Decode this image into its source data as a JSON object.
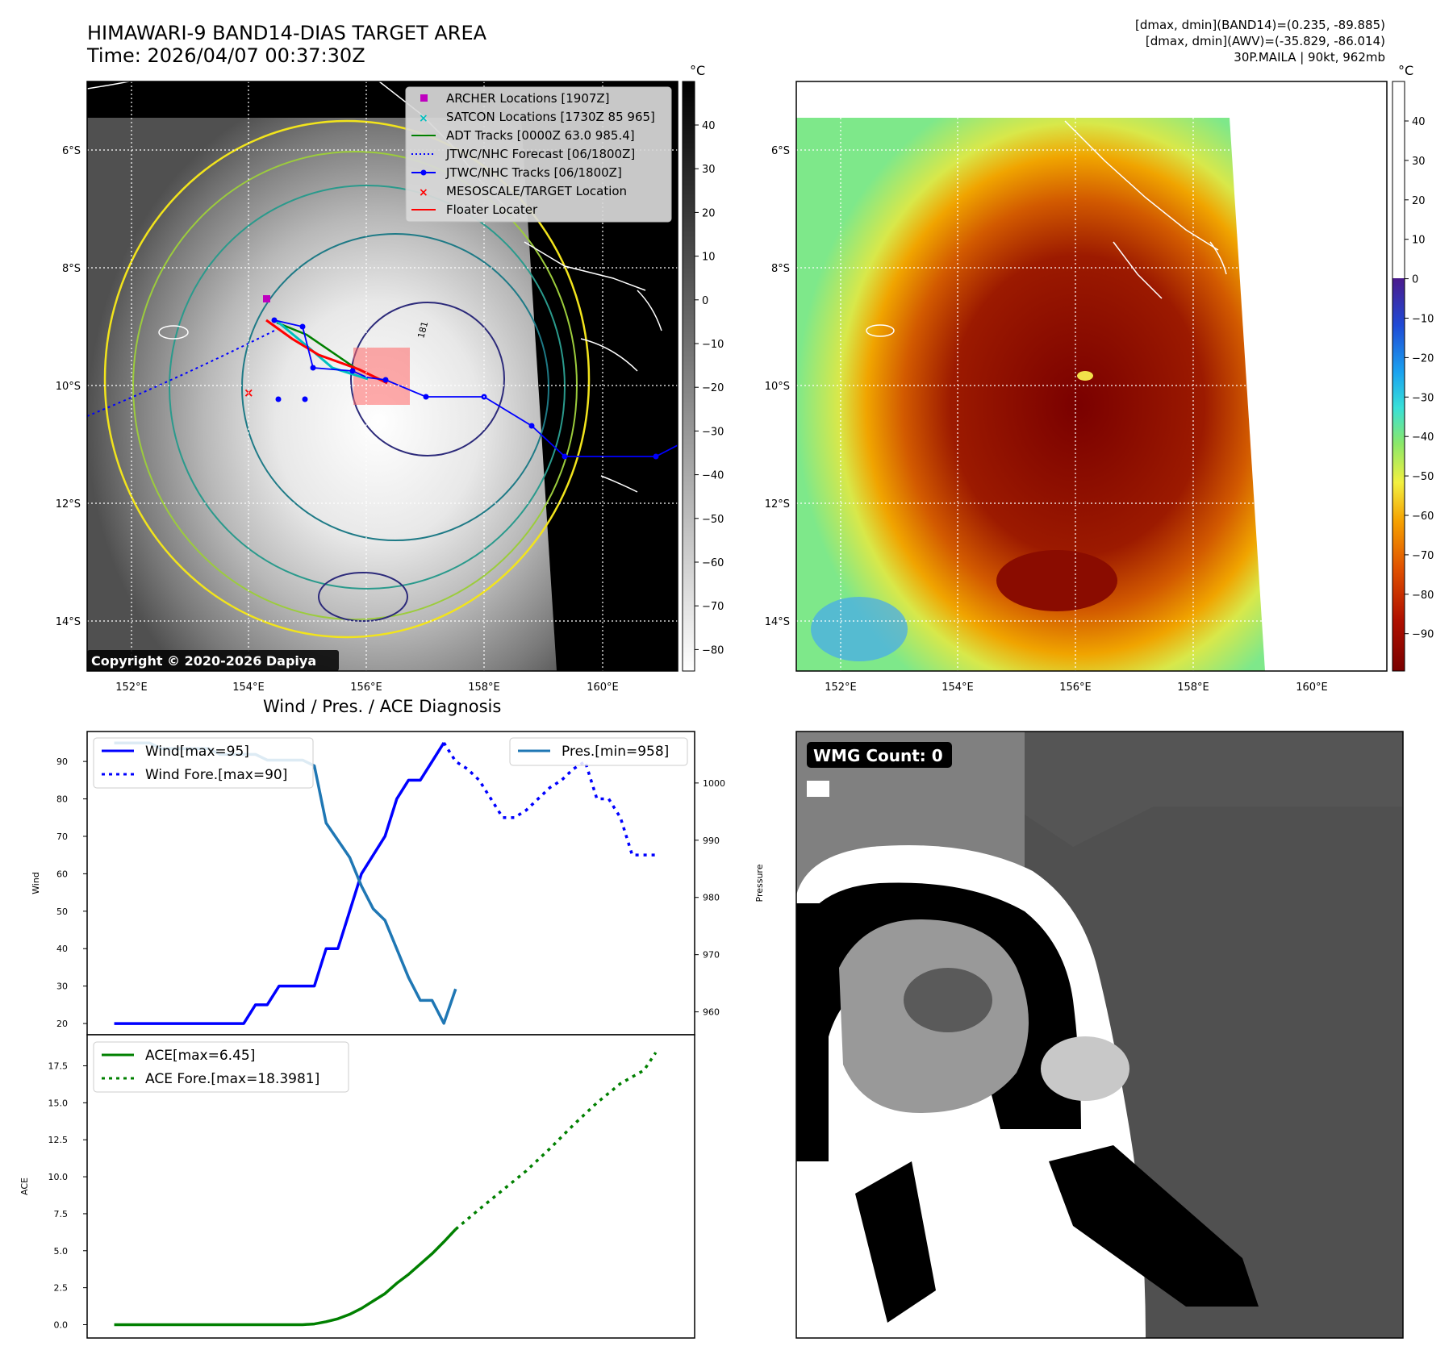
{
  "header": {
    "title_line1": "HIMAWARI-9 BAND14-DIAS TARGET AREA",
    "title_line2": "Time: 2026/04/07 00:37:30Z",
    "info_line1": "[dmax, dmin](BAND14)=(0.235, -89.885)",
    "info_line2": "[dmax, dmin](AWV)=(-35.829, -86.014)",
    "info_line3": "30P.MAILA | 90kt, 962mb"
  },
  "map": {
    "lon_ticks": [
      "152°E",
      "154°E",
      "156°E",
      "158°E",
      "160°E"
    ],
    "lat_ticks": [
      "6°S",
      "8°S",
      "10°S",
      "12°S",
      "14°S"
    ],
    "copyright": "Copyright © 2020-2026 Dapiya",
    "contour_label": "181",
    "legend": [
      {
        "label": "ARCHER Locations [1907Z]",
        "color": "#bf00bf"
      },
      {
        "label": "SATCON Locations [1730Z 85 965]",
        "color": "#00bfbf"
      },
      {
        "label": "ADT Tracks [0000Z 63.0 985.4]",
        "color": "#008000"
      },
      {
        "label": "JTWC/NHC Forecast [06/1800Z]",
        "color": "#0000ff"
      },
      {
        "label": "JTWC/NHC Tracks [06/1800Z]",
        "color": "#0000ff"
      },
      {
        "label": "MESOSCALE/TARGET Location",
        "color": "#ff0000"
      },
      {
        "label": "Floater Locater",
        "color": "#ff0000"
      }
    ]
  },
  "colorbar_gray": {
    "unit": "°C",
    "ticks": [
      "40",
      "30",
      "20",
      "10",
      "0",
      "−10",
      "−20",
      "−30",
      "−40",
      "−50",
      "−60",
      "−70",
      "−80"
    ]
  },
  "colorbar_color": {
    "unit": "°C",
    "ticks": [
      "40",
      "30",
      "20",
      "10",
      "0",
      "−10",
      "−20",
      "−30",
      "−40",
      "−50",
      "−60",
      "−70",
      "−80",
      "−90"
    ]
  },
  "wmg": {
    "label": "WMG Count: 0"
  },
  "chart_data": [
    {
      "type": "line",
      "title": "Wind / Pres. / ACE Diagnosis",
      "ylabel": "Wind",
      "y2label": "Pressure",
      "ylim": [
        17,
        98
      ],
      "y2lim": [
        956,
        1009
      ],
      "yticks": [
        "20",
        "30",
        "40",
        "50",
        "60",
        "70",
        "80",
        "90"
      ],
      "y2ticks": [
        "960",
        "970",
        "980",
        "990",
        "1000"
      ],
      "x": [
        0,
        1,
        2,
        3,
        4,
        5,
        6,
        7,
        8,
        9,
        10,
        11,
        12,
        13,
        14,
        15,
        16,
        17,
        18,
        19,
        20,
        21,
        22,
        23,
        24,
        25,
        26,
        27,
        28,
        29,
        30,
        31,
        32,
        33,
        34,
        35,
        36,
        37,
        38,
        39,
        40,
        41,
        42,
        43,
        44,
        45,
        46
      ],
      "series": [
        {
          "name": "Wind[max=95]",
          "color": "#0000ff",
          "style": "solid",
          "x": [
            0,
            1,
            2,
            3,
            4,
            5,
            6,
            7,
            8,
            9,
            10,
            11,
            12,
            13,
            14,
            15,
            16,
            17,
            18,
            19,
            20,
            21,
            22,
            23,
            24,
            25,
            26,
            27,
            28
          ],
          "values": [
            20,
            20,
            20,
            20,
            20,
            20,
            20,
            20,
            20,
            20,
            20,
            20,
            25,
            25,
            30,
            30,
            30,
            30,
            40,
            40,
            50,
            60,
            65,
            70,
            80,
            85,
            85,
            90,
            95
          ]
        },
        {
          "name": "Wind Fore.[max=90]",
          "color": "#0000ff",
          "style": "dotted",
          "x": [
            28,
            29,
            30,
            31,
            32,
            33,
            34,
            35,
            36,
            37,
            38,
            39,
            40,
            41,
            42,
            43,
            44,
            45,
            46
          ],
          "values": [
            95,
            90,
            88,
            85,
            80,
            75,
            75,
            77,
            80,
            83,
            85,
            88,
            90,
            80,
            80,
            75,
            65,
            65,
            65
          ]
        },
        {
          "name": "Pres.[min=958]",
          "color": "#1f77b4",
          "style": "solid",
          "axis": "right",
          "x": [
            0,
            1,
            2,
            3,
            4,
            5,
            6,
            7,
            8,
            9,
            10,
            11,
            12,
            13,
            14,
            15,
            16,
            17,
            18,
            19,
            20,
            21,
            22,
            23,
            24,
            25,
            26,
            27,
            28,
            29
          ],
          "values": [
            1007,
            1007,
            1007,
            1007,
            1006,
            1006,
            1006,
            1006,
            1006,
            1005,
            1005,
            1005,
            1005,
            1004,
            1004,
            1004,
            1004,
            1003,
            993,
            990,
            987,
            982,
            978,
            976,
            971,
            966,
            962,
            962,
            958,
            964
          ]
        }
      ]
    },
    {
      "type": "line",
      "ylabel": "ACE",
      "ylim": [
        -0.9,
        19.6
      ],
      "yticks": [
        "0.0",
        "2.5",
        "5.0",
        "7.5",
        "10.0",
        "12.5",
        "15.0",
        "17.5"
      ],
      "series": [
        {
          "name": "ACE[max=6.45]",
          "color": "#008000",
          "style": "solid",
          "x": [
            0,
            2,
            4,
            6,
            8,
            10,
            12,
            14,
            16,
            17,
            18,
            19,
            20,
            21,
            22,
            23,
            24,
            25,
            26,
            27,
            28,
            29
          ],
          "values": [
            0,
            0,
            0,
            0,
            0,
            0,
            0,
            0,
            0,
            0.05,
            0.2,
            0.4,
            0.7,
            1.1,
            1.6,
            2.1,
            2.8,
            3.4,
            4.1,
            4.8,
            5.6,
            6.45
          ]
        },
        {
          "name": "ACE Fore.[max=18.3981]",
          "color": "#008000",
          "style": "dotted",
          "x": [
            29,
            31,
            33,
            35,
            37,
            39,
            41,
            43,
            45,
            46
          ],
          "values": [
            6.45,
            7.8,
            9.1,
            10.4,
            11.9,
            13.5,
            15.0,
            16.3,
            17.2,
            18.3981
          ]
        }
      ]
    }
  ]
}
